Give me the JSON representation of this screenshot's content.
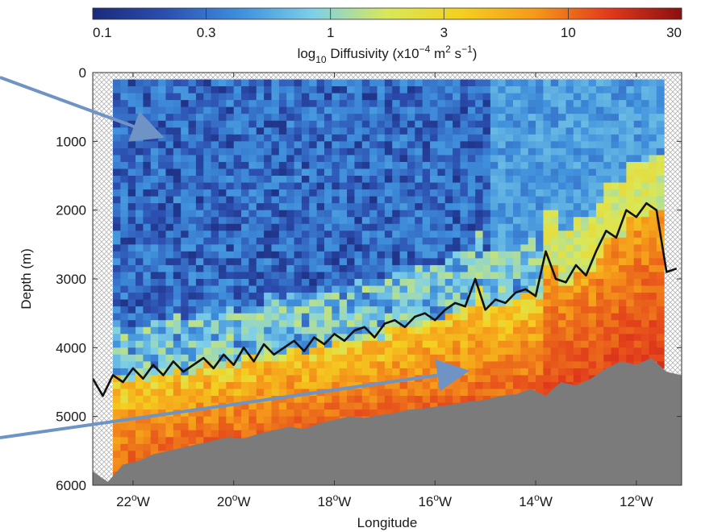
{
  "chart_data": {
    "type": "heatmap",
    "title": "",
    "xlabel": "Longitude",
    "ylabel": "Depth (m)",
    "xlim": [
      -22.8,
      -11.1
    ],
    "ylim": [
      0,
      6000
    ],
    "y_inverted": true,
    "x_ticks": [
      {
        "value": -22,
        "label": "22",
        "suffix": "W"
      },
      {
        "value": -20,
        "label": "20",
        "suffix": "W"
      },
      {
        "value": -18,
        "label": "18",
        "suffix": "W"
      },
      {
        "value": -16,
        "label": "16",
        "suffix": "W"
      },
      {
        "value": -14,
        "label": "14",
        "suffix": "W"
      },
      {
        "value": -12,
        "label": "12",
        "suffix": "W"
      }
    ],
    "y_ticks": [
      0,
      1000,
      2000,
      3000,
      4000,
      5000,
      6000
    ],
    "colorbar": {
      "scale": "log",
      "range": [
        0.1,
        30
      ],
      "ticks": [
        0.1,
        0.3,
        1,
        3,
        10,
        30
      ],
      "tick_labels": [
        "0.1",
        "0.3",
        "1",
        "3",
        "10",
        "30"
      ],
      "label_prefix": "log",
      "label_sub": "10",
      "label_main": " Diffusivity (x10",
      "label_exp1": "−4",
      "label_mid": " m",
      "label_exp2": "2",
      "label_mid2": " s",
      "label_exp3": "−1",
      "label_end": ")",
      "colors": [
        "#1b2a7a",
        "#2c4fb0",
        "#3f8fdc",
        "#7ed0e8",
        "#d8e85a",
        "#f4d020",
        "#f59a1a",
        "#e23a1c",
        "#8a1010"
      ]
    },
    "bathymetry": {
      "x": [
        -22.8,
        -22.5,
        -22.2,
        -21.9,
        -21.6,
        -21.3,
        -21.0,
        -20.7,
        -20.4,
        -20.1,
        -19.8,
        -19.5,
        -19.2,
        -18.9,
        -18.6,
        -18.3,
        -18.0,
        -17.7,
        -17.4,
        -17.1,
        -16.8,
        -16.5,
        -16.2,
        -15.9,
        -15.6,
        -15.3,
        -15.0,
        -14.7,
        -14.4,
        -14.1,
        -13.8,
        -13.5,
        -13.2,
        -12.9,
        -12.6,
        -12.3,
        -12.0,
        -11.7,
        -11.4,
        -11.1
      ],
      "depth": [
        5800,
        5950,
        5700,
        5650,
        5550,
        5500,
        5450,
        5400,
        5350,
        5300,
        5320,
        5250,
        5200,
        5150,
        5180,
        5100,
        5050,
        5000,
        5020,
        4980,
        4950,
        4900,
        4880,
        4850,
        4820,
        4780,
        4760,
        4700,
        4680,
        4600,
        4700,
        4500,
        4550,
        4450,
        4300,
        4200,
        4250,
        4150,
        4350,
        4400
      ],
      "fill_color": "#7b7b7b"
    },
    "mixing_line": {
      "name": "",
      "color": "#111111",
      "x": [
        -22.8,
        -22.6,
        -22.4,
        -22.2,
        -22.0,
        -21.8,
        -21.6,
        -21.4,
        -21.2,
        -21.0,
        -20.8,
        -20.6,
        -20.4,
        -20.2,
        -20.0,
        -19.8,
        -19.6,
        -19.4,
        -19.2,
        -19.0,
        -18.8,
        -18.6,
        -18.4,
        -18.2,
        -18.0,
        -17.8,
        -17.6,
        -17.4,
        -17.2,
        -17.0,
        -16.8,
        -16.6,
        -16.4,
        -16.2,
        -16.0,
        -15.8,
        -15.6,
        -15.4,
        -15.2,
        -15.0,
        -14.8,
        -14.6,
        -14.4,
        -14.2,
        -14.0,
        -13.8,
        -13.6,
        -13.4,
        -13.2,
        -13.0,
        -12.8,
        -12.6,
        -12.4,
        -12.2,
        -12.0,
        -11.8,
        -11.6,
        -11.4,
        -11.2
      ],
      "depth": [
        4450,
        4700,
        4400,
        4500,
        4300,
        4450,
        4250,
        4400,
        4200,
        4350,
        4250,
        4150,
        4300,
        4100,
        4250,
        4000,
        4200,
        3950,
        4100,
        4000,
        3900,
        4050,
        3850,
        3950,
        3800,
        3900,
        3750,
        3700,
        3850,
        3650,
        3600,
        3700,
        3550,
        3500,
        3600,
        3450,
        3350,
        3400,
        3000,
        3450,
        3300,
        3350,
        3200,
        3150,
        3250,
        2600,
        3000,
        3050,
        2800,
        2950,
        2600,
        2300,
        2400,
        2000,
        2100,
        1900,
        2000,
        2900,
        2850
      ]
    }
  },
  "annotations": {
    "arrows": [
      {
        "label": "upper-arrow",
        "color": "#6f93c4"
      },
      {
        "label": "lower-arrow",
        "color": "#6f93c4"
      }
    ]
  }
}
